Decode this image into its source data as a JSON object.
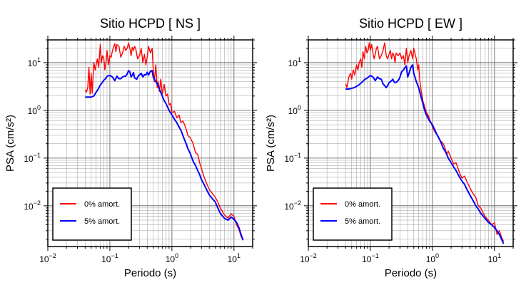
{
  "chart_data": [
    {
      "type": "line",
      "title": "Sitio HCPD [ NS ]",
      "xlabel": "Periodo (s)",
      "ylabel": "PSA (cm/s²)",
      "xscale": "log",
      "yscale": "log",
      "xlim": [
        0.01,
        20
      ],
      "ylim": [
        0.0014,
        30
      ],
      "grid": true,
      "legend_position": "bottom-left",
      "x_ticks": [
        {
          "base": "10",
          "exp": "−2"
        },
        {
          "base": "10",
          "exp": "−1"
        },
        {
          "base": "10",
          "exp": "0"
        },
        {
          "base": "10",
          "exp": "1"
        }
      ],
      "y_ticks": [
        {
          "base": "10",
          "exp": "−2"
        },
        {
          "base": "10",
          "exp": "−1"
        },
        {
          "base": "10",
          "exp": "0"
        },
        {
          "base": "10",
          "exp": "1"
        }
      ],
      "series": [
        {
          "name": "0% amort.",
          "color": "#ff0000",
          "x": [
            0.04,
            0.042,
            0.044,
            0.046,
            0.048,
            0.05,
            0.052,
            0.055,
            0.058,
            0.06,
            0.063,
            0.066,
            0.07,
            0.073,
            0.076,
            0.08,
            0.083,
            0.087,
            0.09,
            0.095,
            0.1,
            0.105,
            0.11,
            0.115,
            0.12,
            0.125,
            0.13,
            0.14,
            0.15,
            0.16,
            0.17,
            0.18,
            0.19,
            0.2,
            0.21,
            0.22,
            0.23,
            0.24,
            0.25,
            0.26,
            0.28,
            0.3,
            0.32,
            0.34,
            0.36,
            0.38,
            0.4,
            0.42,
            0.45,
            0.48,
            0.5,
            0.52,
            0.55,
            0.58,
            0.6,
            0.63,
            0.66,
            0.7,
            0.75,
            0.8,
            0.85,
            0.9,
            0.95,
            1.0,
            1.1,
            1.2,
            1.3,
            1.4,
            1.5,
            1.6,
            1.7,
            1.8,
            2.0,
            2.2,
            2.4,
            2.6,
            2.8,
            3.0,
            3.3,
            3.6,
            4.0,
            4.5,
            5.0,
            5.5,
            6.0,
            7.0,
            8.0,
            9.0,
            10.0,
            11.0,
            12.0,
            13.0,
            14.0
          ],
          "y": [
            2.7,
            2.4,
            3.0,
            8.0,
            2.2,
            6.0,
            2.3,
            10.0,
            7.0,
            9.0,
            12.0,
            8.0,
            24.0,
            10.0,
            14.0,
            12.0,
            7.0,
            11.0,
            18.0,
            9.0,
            14.0,
            13.0,
            18.0,
            21.0,
            25.0,
            17.0,
            24.0,
            22.0,
            13.0,
            16.0,
            22.0,
            18.0,
            20.0,
            26.0,
            20.0,
            14.0,
            21.0,
            18.0,
            22.0,
            20.0,
            12.0,
            14.0,
            20.0,
            10.0,
            15.0,
            9.0,
            13.0,
            22.0,
            16.0,
            20.0,
            7.0,
            4.0,
            9.0,
            3.0,
            4.0,
            2.5,
            4.5,
            2.2,
            3.5,
            2.0,
            2.2,
            1.3,
            1.4,
            0.9,
            0.95,
            0.7,
            0.8,
            0.55,
            0.6,
            0.5,
            0.4,
            0.3,
            0.26,
            0.2,
            0.13,
            0.12,
            0.08,
            0.06,
            0.04,
            0.03,
            0.022,
            0.018,
            0.015,
            0.012,
            0.009,
            0.0065,
            0.0055,
            0.0068,
            0.006,
            0.004,
            0.0032,
            0.0023,
            0.0019
          ]
        },
        {
          "name": "5% amort.",
          "color": "#0000ff",
          "x": [
            0.04,
            0.045,
            0.05,
            0.055,
            0.06,
            0.065,
            0.07,
            0.075,
            0.08,
            0.085,
            0.09,
            0.1,
            0.11,
            0.12,
            0.13,
            0.14,
            0.15,
            0.16,
            0.17,
            0.18,
            0.19,
            0.2,
            0.21,
            0.22,
            0.23,
            0.24,
            0.25,
            0.27,
            0.29,
            0.3,
            0.32,
            0.34,
            0.36,
            0.38,
            0.4,
            0.42,
            0.45,
            0.48,
            0.5,
            0.55,
            0.6,
            0.65,
            0.7,
            0.75,
            0.8,
            0.9,
            1.0,
            1.1,
            1.2,
            1.3,
            1.4,
            1.5,
            1.6,
            1.7,
            1.8,
            2.0,
            2.2,
            2.4,
            2.6,
            2.8,
            3.0,
            3.3,
            3.6,
            4.0,
            4.5,
            5.0,
            5.5,
            6.0,
            7.0,
            8.0,
            9.0,
            10.0,
            11.0,
            12.0,
            13.0,
            14.0
          ],
          "y": [
            1.9,
            1.9,
            1.9,
            2.0,
            2.4,
            2.8,
            3.4,
            3.8,
            4.3,
            4.6,
            5.2,
            5.4,
            5.0,
            4.2,
            5.2,
            4.6,
            4.6,
            5.0,
            5.2,
            5.2,
            5.8,
            6.8,
            6.4,
            5.0,
            5.5,
            6.2,
            4.8,
            4.5,
            5.4,
            5.5,
            6.0,
            5.0,
            5.6,
            5.5,
            6.3,
            5.5,
            6.6,
            6.8,
            5.0,
            4.0,
            3.3,
            2.5,
            2.0,
            1.6,
            1.4,
            1.0,
            0.8,
            0.65,
            0.55,
            0.45,
            0.38,
            0.3,
            0.24,
            0.2,
            0.16,
            0.12,
            0.085,
            0.07,
            0.055,
            0.045,
            0.035,
            0.028,
            0.022,
            0.017,
            0.014,
            0.012,
            0.009,
            0.007,
            0.0055,
            0.005,
            0.0058,
            0.0052,
            0.0045,
            0.0035,
            0.0025,
            0.0019
          ]
        }
      ]
    },
    {
      "type": "line",
      "title": "Sitio HCPD [ EW ]",
      "xlabel": "Periodo (s)",
      "ylabel": "PSA (cm/s²)",
      "xscale": "log",
      "yscale": "log",
      "xlim": [
        0.01,
        20
      ],
      "ylim": [
        0.0014,
        30
      ],
      "grid": true,
      "legend_position": "bottom-left",
      "x_ticks": [
        {
          "base": "10",
          "exp": "−2"
        },
        {
          "base": "10",
          "exp": "−1"
        },
        {
          "base": "10",
          "exp": "0"
        },
        {
          "base": "10",
          "exp": "1"
        }
      ],
      "y_ticks": [
        {
          "base": "10",
          "exp": "−2"
        },
        {
          "base": "10",
          "exp": "−1"
        },
        {
          "base": "10",
          "exp": "0"
        },
        {
          "base": "10",
          "exp": "1"
        }
      ],
      "series": [
        {
          "name": "0% amort.",
          "color": "#ff0000",
          "x": [
            0.04,
            0.042,
            0.045,
            0.048,
            0.05,
            0.053,
            0.056,
            0.06,
            0.063,
            0.066,
            0.07,
            0.073,
            0.076,
            0.08,
            0.084,
            0.088,
            0.092,
            0.096,
            0.1,
            0.105,
            0.11,
            0.115,
            0.12,
            0.125,
            0.13,
            0.14,
            0.15,
            0.16,
            0.17,
            0.18,
            0.19,
            0.2,
            0.21,
            0.22,
            0.23,
            0.24,
            0.25,
            0.26,
            0.28,
            0.3,
            0.32,
            0.34,
            0.36,
            0.38,
            0.4,
            0.42,
            0.45,
            0.48,
            0.5,
            0.52,
            0.55,
            0.58,
            0.6,
            0.63,
            0.66,
            0.7,
            0.75,
            0.8,
            0.85,
            0.9,
            0.95,
            1.0,
            1.1,
            1.2,
            1.3,
            1.4,
            1.5,
            1.6,
            1.7,
            1.8,
            2.0,
            2.2,
            2.4,
            2.6,
            2.8,
            3.0,
            3.3,
            3.6,
            4.0,
            4.5,
            5.0,
            5.5,
            6.0,
            7.0,
            8.0,
            9.0,
            10.0,
            11.0,
            12.0,
            13.0,
            14.0
          ],
          "y": [
            3.6,
            3.0,
            5.0,
            6.0,
            4.5,
            7.0,
            5.5,
            9.0,
            7.0,
            10.0,
            12.0,
            8.0,
            17.0,
            12.0,
            22.0,
            16.0,
            18.0,
            26.0,
            18.0,
            24.0,
            16.0,
            12.0,
            15.0,
            20.0,
            22.0,
            12.0,
            14.0,
            18.0,
            26.0,
            14.0,
            12.0,
            15.0,
            18.0,
            12.0,
            16.0,
            14.0,
            10.0,
            16.0,
            14.0,
            16.0,
            12.0,
            14.0,
            9.0,
            20.0,
            10.0,
            14.0,
            18.0,
            12.0,
            20.0,
            16.0,
            12.0,
            7.0,
            9.0,
            4.0,
            2.5,
            1.6,
            1.2,
            0.9,
            0.8,
            0.65,
            0.55,
            0.45,
            0.35,
            0.3,
            0.24,
            0.22,
            0.2,
            0.16,
            0.12,
            0.14,
            0.1,
            0.075,
            0.08,
            0.06,
            0.045,
            0.038,
            0.042,
            0.032,
            0.024,
            0.018,
            0.015,
            0.01,
            0.009,
            0.006,
            0.005,
            0.004,
            0.0044,
            0.0025,
            0.003,
            0.0022,
            0.0018
          ]
        },
        {
          "name": "5% amort.",
          "color": "#0000ff",
          "x": [
            0.04,
            0.045,
            0.05,
            0.055,
            0.06,
            0.065,
            0.07,
            0.075,
            0.08,
            0.085,
            0.09,
            0.1,
            0.11,
            0.12,
            0.13,
            0.14,
            0.15,
            0.16,
            0.17,
            0.18,
            0.19,
            0.2,
            0.21,
            0.22,
            0.23,
            0.24,
            0.25,
            0.27,
            0.29,
            0.3,
            0.32,
            0.34,
            0.36,
            0.38,
            0.4,
            0.42,
            0.45,
            0.48,
            0.5,
            0.55,
            0.6,
            0.65,
            0.7,
            0.75,
            0.8,
            0.9,
            1.0,
            1.1,
            1.2,
            1.3,
            1.4,
            1.5,
            1.6,
            1.7,
            1.8,
            2.0,
            2.2,
            2.4,
            2.6,
            2.8,
            3.0,
            3.3,
            3.6,
            4.0,
            4.5,
            5.0,
            5.5,
            6.0,
            7.0,
            8.0,
            9.0,
            10.0,
            11.0,
            12.0,
            13.0,
            14.0
          ],
          "y": [
            2.8,
            2.8,
            2.9,
            3.0,
            3.2,
            3.4,
            3.7,
            4.0,
            4.4,
            4.6,
            4.8,
            5.4,
            5.0,
            4.2,
            5.0,
            4.6,
            4.5,
            3.6,
            3.3,
            3.0,
            3.3,
            3.8,
            4.0,
            4.2,
            4.5,
            4.0,
            3.8,
            4.0,
            4.5,
            5.0,
            6.5,
            7.0,
            7.8,
            8.5,
            5.0,
            6.0,
            8.0,
            9.0,
            6.0,
            4.0,
            3.0,
            2.0,
            1.4,
            1.0,
            0.8,
            0.6,
            0.5,
            0.38,
            0.3,
            0.25,
            0.2,
            0.16,
            0.14,
            0.12,
            0.1,
            0.08,
            0.065,
            0.055,
            0.045,
            0.038,
            0.033,
            0.028,
            0.022,
            0.017,
            0.013,
            0.01,
            0.0085,
            0.007,
            0.0055,
            0.0045,
            0.004,
            0.0035,
            0.003,
            0.0025,
            0.002,
            0.0016
          ]
        }
      ]
    }
  ]
}
